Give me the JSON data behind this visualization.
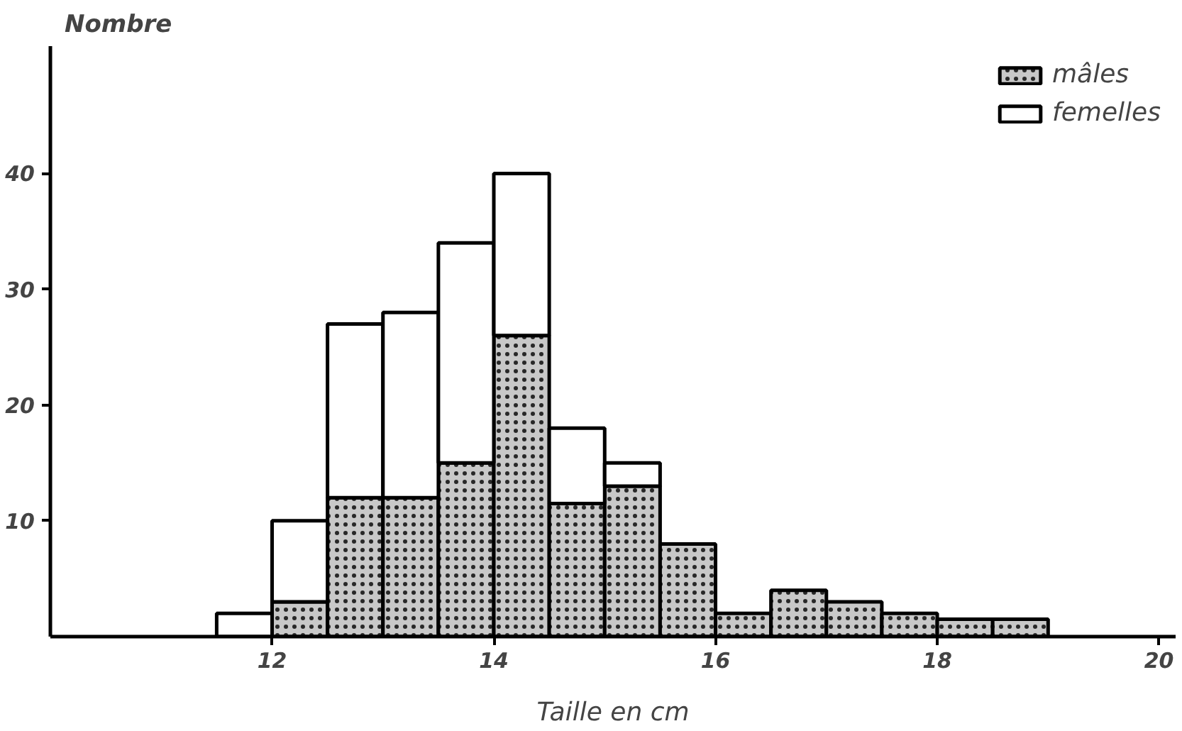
{
  "chart_data": {
    "type": "bar",
    "xlabel": "Taille en cm",
    "ylabel": "Nombre",
    "x": [
      11.75,
      12.25,
      12.75,
      13.25,
      13.75,
      14.25,
      14.75,
      15.25,
      15.75,
      16.25,
      16.75,
      17.25,
      17.75,
      18.25,
      18.75
    ],
    "stacked": true,
    "series": [
      {
        "name": "mâles",
        "color": "#c8c8c8",
        "values": [
          0,
          3,
          12,
          12,
          15,
          26,
          11.5,
          13,
          8,
          2,
          4,
          3,
          2,
          1.5,
          1.5
        ]
      },
      {
        "name": "femelles",
        "color": "#ffffff",
        "values": [
          2,
          7,
          15,
          16,
          19,
          14,
          6.5,
          2,
          0,
          0,
          0,
          0,
          0,
          0,
          0
        ]
      }
    ],
    "xlim": [
      10,
      20.15
    ],
    "ylim": [
      0,
      51
    ],
    "xticks": [
      12,
      14,
      16,
      18,
      20
    ],
    "yticks": [
      10,
      20,
      30,
      40
    ],
    "grid": false,
    "legend": "top right"
  }
}
